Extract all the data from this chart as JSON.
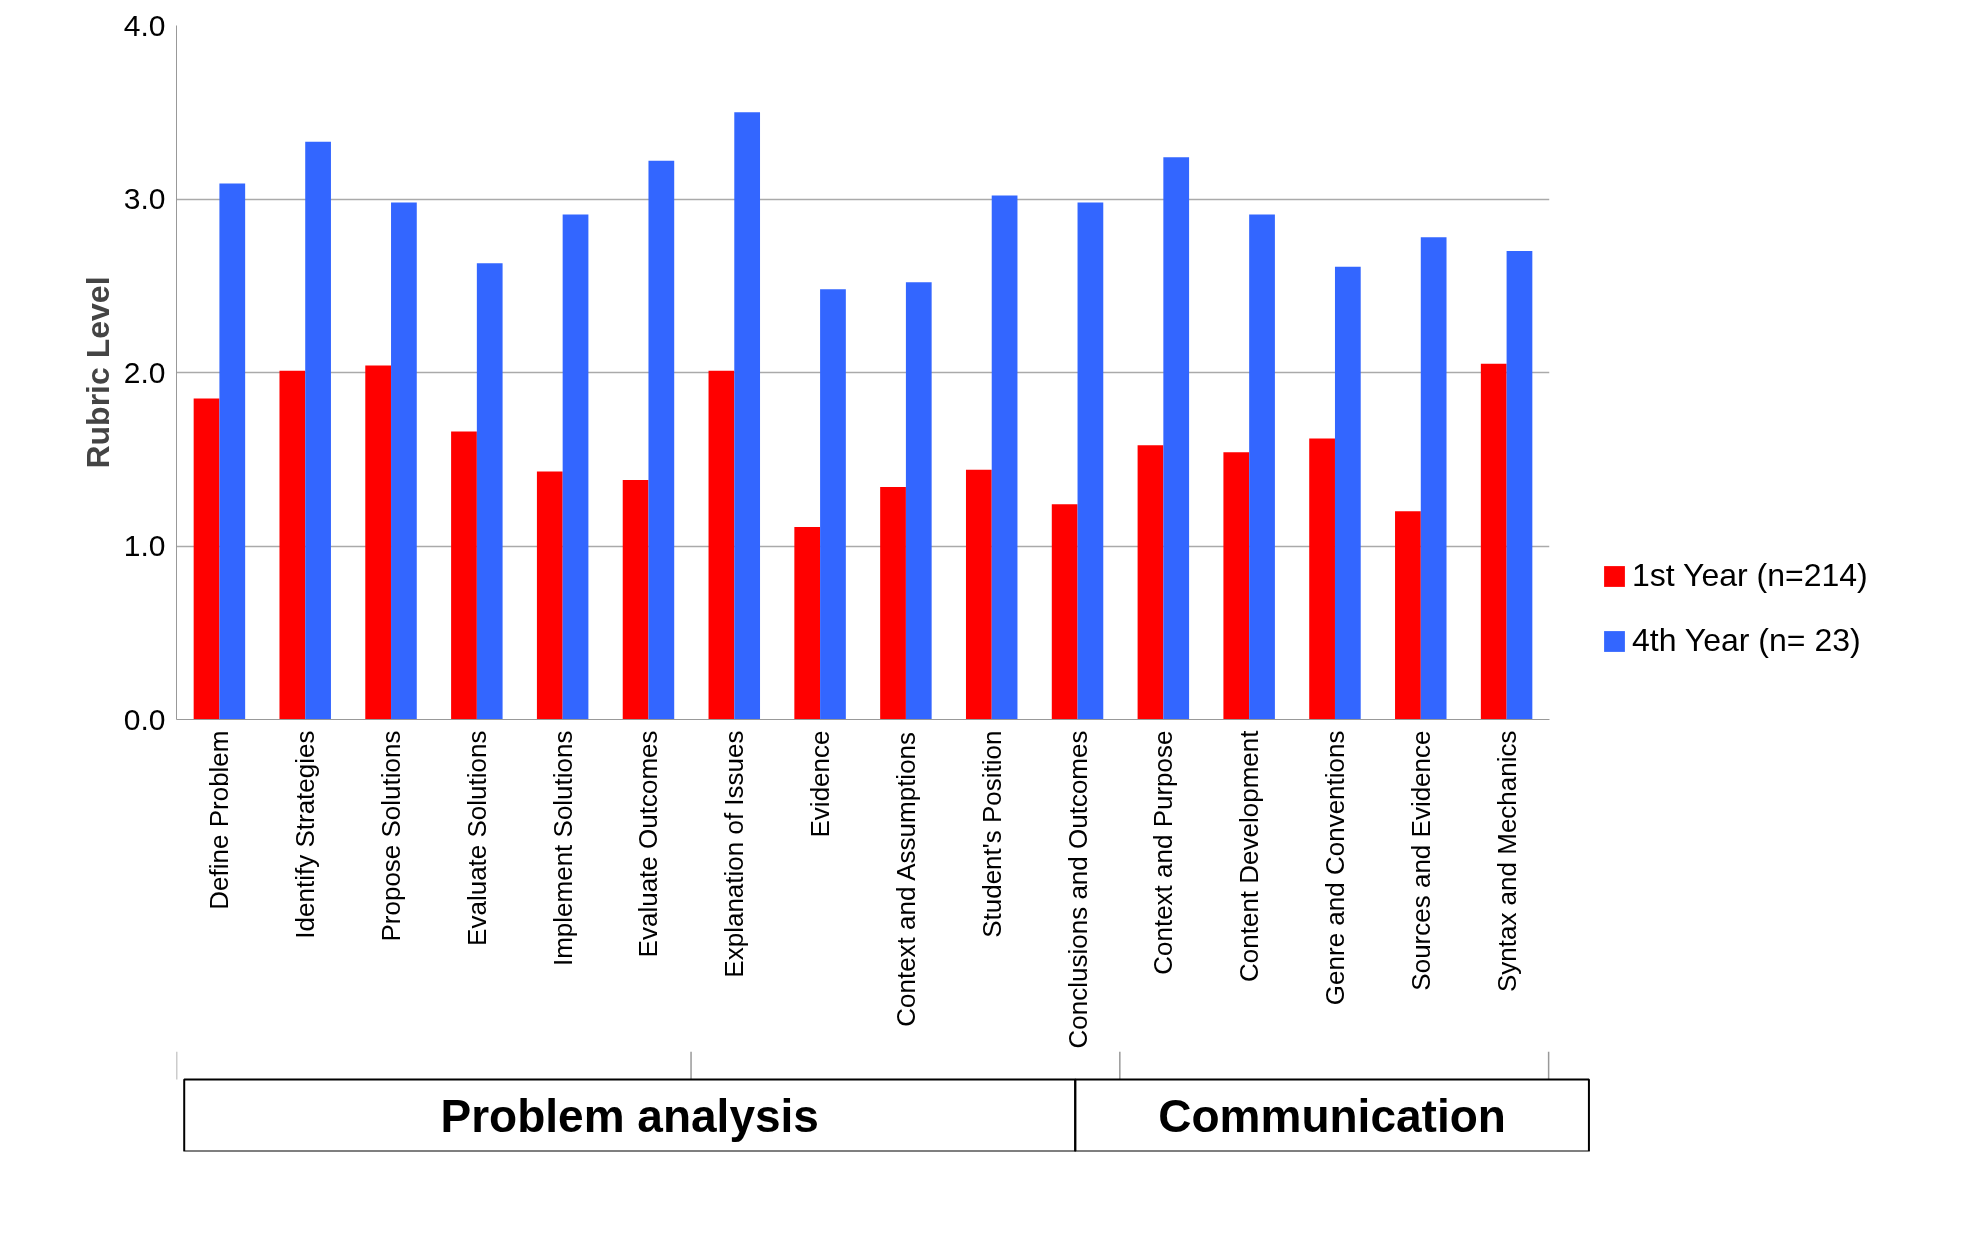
{
  "chart_data": {
    "type": "bar",
    "ylabel": "Rubric Level",
    "categories": [
      "Define Problem",
      "Identify Strategies",
      "Propose Solutions",
      "Evaluate Solutions",
      "Implement Solutions",
      "Evaluate Outcomes",
      "Explanation of Issues",
      "Evidence",
      "Context and Assumptions",
      "Student's Position",
      "Conclusions and Outcomes",
      "Context and Purpose",
      "Content Development",
      "Genre and Conventions",
      "Sources and Evidence",
      "Syntax and Mechanics"
    ],
    "series": [
      {
        "name": "1st Year (n=214)",
        "color": "#ff0000",
        "values": [
          1.85,
          2.01,
          2.04,
          1.66,
          1.43,
          1.38,
          2.01,
          1.11,
          1.34,
          1.44,
          1.24,
          1.58,
          1.54,
          1.62,
          1.2,
          2.05
        ]
      },
      {
        "name": "4th Year (n= 23)",
        "color": "#3366ff",
        "values": [
          3.09,
          3.33,
          2.98,
          2.63,
          2.91,
          3.22,
          3.5,
          2.48,
          2.52,
          3.02,
          2.98,
          3.24,
          2.91,
          2.61,
          2.78,
          2.7
        ]
      }
    ],
    "ylim": [
      0,
      4
    ],
    "yticks": [
      {
        "value": 0,
        "label": "0.0"
      },
      {
        "value": 1,
        "label": "1.0"
      },
      {
        "value": 2,
        "label": "2.0"
      },
      {
        "value": 3,
        "label": "3.0"
      },
      {
        "value": 4,
        "label": "4.0"
      }
    ],
    "grid": "y",
    "legend": "right",
    "annotations": [
      "Problem analysis",
      "Communication"
    ]
  }
}
